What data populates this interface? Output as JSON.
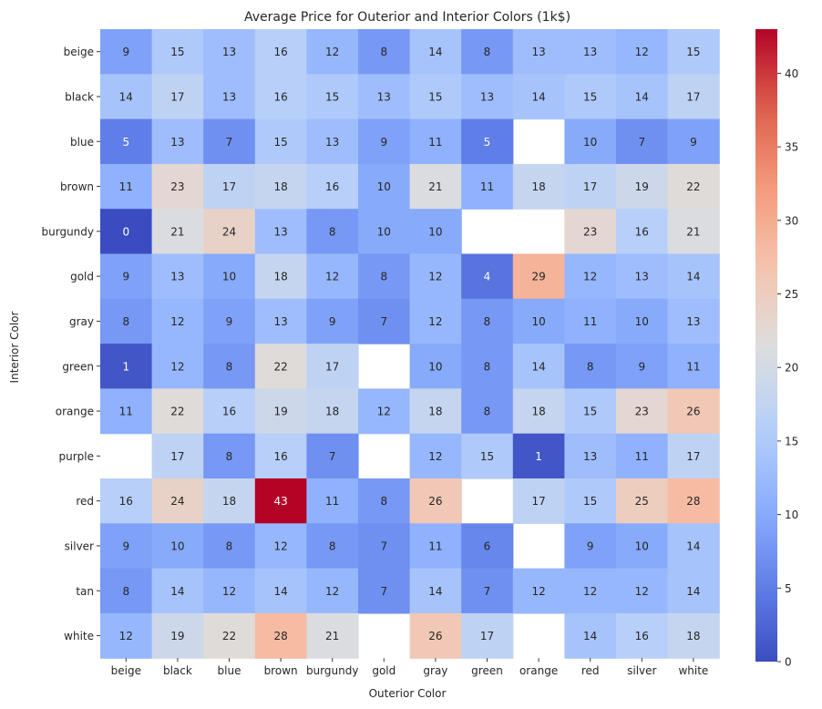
{
  "chart_data": {
    "type": "heatmap",
    "title": "Average Price for Outerior and Interior Colors   (1k$)",
    "xlabel": "Outerior Color",
    "ylabel": "Interior Color",
    "x_categories": [
      "beige",
      "black",
      "blue",
      "brown",
      "burgundy",
      "gold",
      "gray",
      "green",
      "orange",
      "red",
      "silver",
      "white"
    ],
    "y_categories": [
      "beige",
      "black",
      "blue",
      "brown",
      "burgundy",
      "gold",
      "gray",
      "green",
      "orange",
      "purple",
      "red",
      "silver",
      "tan",
      "white"
    ],
    "values": [
      [
        9,
        15,
        13,
        16,
        12,
        8,
        14,
        8,
        13,
        13,
        12,
        15
      ],
      [
        14,
        17,
        13,
        16,
        15,
        13,
        15,
        13,
        14,
        15,
        14,
        17
      ],
      [
        5,
        13,
        7,
        15,
        13,
        9,
        11,
        5,
        null,
        10,
        7,
        9
      ],
      [
        11,
        23,
        17,
        18,
        16,
        10,
        21,
        11,
        18,
        17,
        19,
        22
      ],
      [
        0,
        21,
        24,
        13,
        8,
        10,
        10,
        null,
        null,
        23,
        16,
        21
      ],
      [
        9,
        13,
        10,
        18,
        12,
        8,
        12,
        4,
        29,
        12,
        13,
        14
      ],
      [
        8,
        12,
        9,
        13,
        9,
        7,
        12,
        8,
        10,
        11,
        10,
        13
      ],
      [
        1,
        12,
        8,
        22,
        17,
        null,
        10,
        8,
        14,
        8,
        9,
        11
      ],
      [
        11,
        22,
        16,
        19,
        18,
        12,
        18,
        8,
        18,
        15,
        23,
        26
      ],
      [
        null,
        17,
        8,
        16,
        7,
        null,
        12,
        15,
        1,
        13,
        11,
        17
      ],
      [
        16,
        24,
        18,
        43,
        11,
        8,
        26,
        null,
        17,
        15,
        25,
        28
      ],
      [
        9,
        10,
        8,
        12,
        8,
        7,
        11,
        6,
        null,
        9,
        10,
        14
      ],
      [
        8,
        14,
        12,
        14,
        12,
        7,
        14,
        7,
        12,
        12,
        12,
        14
      ],
      [
        12,
        19,
        22,
        28,
        21,
        null,
        26,
        17,
        null,
        14,
        16,
        18
      ]
    ],
    "vmin": 0,
    "vmax": 43,
    "colormap": "coolwarm",
    "colorbar_ticks": [
      0,
      5,
      10,
      15,
      20,
      25,
      30,
      35,
      40
    ]
  }
}
